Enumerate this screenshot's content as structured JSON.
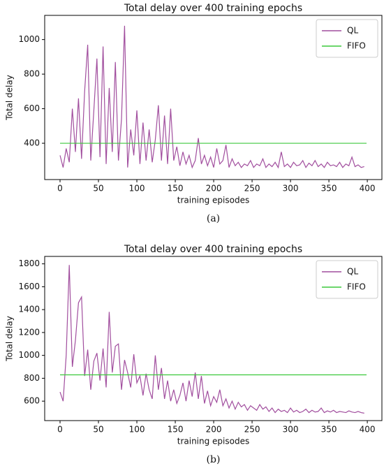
{
  "chart_data": [
    {
      "type": "line",
      "title": "Total delay over 400 training epochs",
      "xlabel": "training episodes",
      "ylabel": "Total delay",
      "caption": "(a)",
      "xlim": [
        -20,
        419
      ],
      "xticks": [
        0,
        50,
        100,
        150,
        200,
        250,
        300,
        350,
        400
      ],
      "ylim": [
        190,
        1140
      ],
      "yticks": [
        400,
        600,
        800,
        1000
      ],
      "grid": false,
      "legend": "upper right",
      "series": [
        {
          "name": "QL",
          "color": "#a14e9e",
          "x": [
            0,
            4,
            8,
            12,
            16,
            20,
            24,
            28,
            32,
            36,
            40,
            44,
            48,
            52,
            56,
            60,
            64,
            68,
            72,
            76,
            80,
            84,
            88,
            92,
            96,
            100,
            104,
            108,
            112,
            116,
            120,
            124,
            128,
            132,
            136,
            140,
            144,
            148,
            152,
            156,
            160,
            164,
            168,
            172,
            176,
            180,
            184,
            188,
            192,
            196,
            200,
            204,
            208,
            212,
            216,
            220,
            224,
            228,
            232,
            236,
            240,
            244,
            248,
            252,
            256,
            260,
            264,
            268,
            272,
            276,
            280,
            284,
            288,
            292,
            296,
            300,
            304,
            308,
            312,
            316,
            320,
            324,
            328,
            332,
            336,
            340,
            344,
            348,
            352,
            356,
            360,
            364,
            368,
            372,
            376,
            380,
            384,
            388,
            392,
            396
          ],
          "values": [
            330,
            260,
            370,
            290,
            600,
            350,
            660,
            310,
            700,
            970,
            300,
            590,
            890,
            320,
            960,
            280,
            720,
            350,
            870,
            300,
            540,
            1080,
            260,
            480,
            330,
            590,
            280,
            520,
            300,
            480,
            290,
            420,
            620,
            300,
            560,
            280,
            600,
            300,
            380,
            270,
            350,
            280,
            330,
            260,
            300,
            430,
            280,
            330,
            270,
            320,
            260,
            370,
            280,
            300,
            390,
            260,
            310,
            270,
            290,
            260,
            280,
            270,
            300,
            260,
            280,
            270,
            310,
            260,
            280,
            265,
            290,
            260,
            350,
            265,
            280,
            260,
            290,
            270,
            275,
            300,
            260,
            285,
            270,
            300,
            265,
            280,
            260,
            290,
            270,
            275,
            265,
            290,
            260,
            280,
            270,
            320,
            265,
            275,
            260,
            265
          ]
        },
        {
          "name": "FIFO",
          "color": "#3cc83c",
          "x": [
            0,
            399
          ],
          "values": [
            400,
            400
          ]
        }
      ]
    },
    {
      "type": "line",
      "title": "Total delay over 400 training epochs",
      "xlabel": "training episodes",
      "ylabel": "Total delay",
      "caption": "(b)",
      "xlim": [
        -20,
        419
      ],
      "xticks": [
        0,
        50,
        100,
        150,
        200,
        250,
        300,
        350,
        400
      ],
      "ylim": [
        430,
        1865
      ],
      "yticks": [
        600,
        800,
        1000,
        1200,
        1400,
        1600,
        1800
      ],
      "grid": false,
      "legend": "upper right",
      "series": [
        {
          "name": "QL",
          "color": "#a14e9e",
          "x": [
            0,
            4,
            8,
            12,
            16,
            20,
            24,
            28,
            32,
            36,
            40,
            44,
            48,
            52,
            56,
            60,
            64,
            68,
            72,
            76,
            80,
            84,
            88,
            92,
            96,
            100,
            104,
            108,
            112,
            116,
            120,
            124,
            128,
            132,
            136,
            140,
            144,
            148,
            152,
            156,
            160,
            164,
            168,
            172,
            176,
            180,
            184,
            188,
            192,
            196,
            200,
            204,
            208,
            212,
            216,
            220,
            224,
            228,
            232,
            236,
            240,
            244,
            248,
            252,
            256,
            260,
            264,
            268,
            272,
            276,
            280,
            284,
            288,
            292,
            296,
            300,
            304,
            308,
            312,
            316,
            320,
            324,
            328,
            332,
            336,
            340,
            344,
            348,
            352,
            356,
            360,
            364,
            368,
            372,
            376,
            380,
            384,
            388,
            392,
            396
          ],
          "values": [
            680,
            600,
            1000,
            1790,
            900,
            1130,
            1460,
            1510,
            820,
            1050,
            700,
            950,
            1020,
            780,
            1060,
            720,
            1380,
            850,
            1080,
            1100,
            700,
            960,
            850,
            720,
            1010,
            760,
            820,
            650,
            840,
            700,
            620,
            1000,
            700,
            890,
            620,
            780,
            600,
            700,
            580,
            650,
            760,
            600,
            780,
            640,
            850,
            620,
            820,
            580,
            690,
            560,
            640,
            590,
            700,
            560,
            620,
            540,
            600,
            530,
            590,
            550,
            570,
            520,
            560,
            540,
            520,
            570,
            530,
            550,
            510,
            540,
            500,
            530,
            510,
            520,
            500,
            540,
            505,
            520,
            500,
            510,
            530,
            500,
            520,
            505,
            510,
            540,
            500,
            515,
            505,
            520,
            500,
            510,
            505,
            500,
            515,
            505,
            500,
            510,
            500,
            495
          ]
        },
        {
          "name": "FIFO",
          "color": "#3cc83c",
          "x": [
            0,
            399
          ],
          "values": [
            830,
            830
          ]
        }
      ]
    }
  ]
}
